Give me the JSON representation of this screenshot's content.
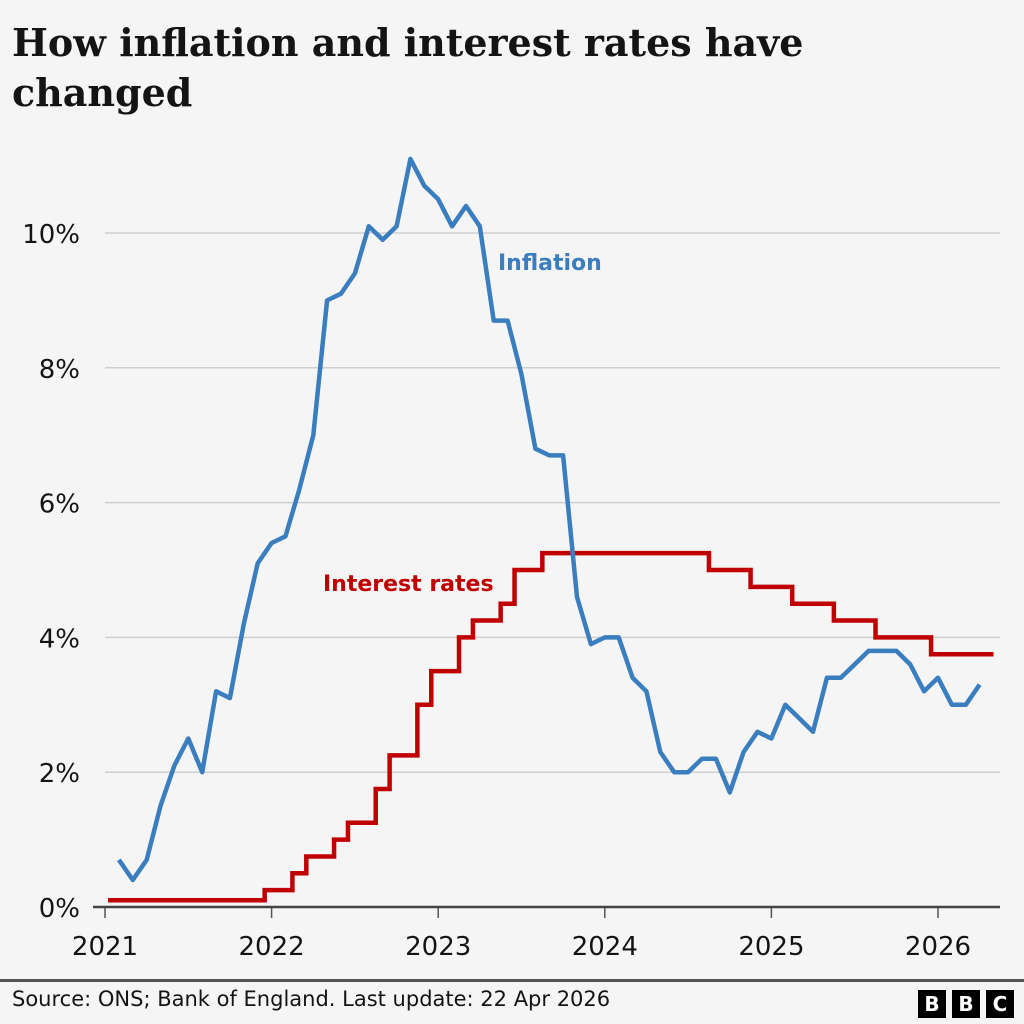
{
  "title": "How inflation and interest rates have changed",
  "footer": {
    "source": "Source: ONS; Bank of England. Last update: 22 Apr 2026",
    "logo": "BBC"
  },
  "chart_data": {
    "type": "line",
    "title": "How inflation and interest rates have changed",
    "xlabel": "",
    "ylabel": "",
    "ylim": [
      0,
      11.2
    ],
    "xlim": [
      "2021-01",
      "2026-04"
    ],
    "y_ticks": [
      "0%",
      "2%",
      "4%",
      "6%",
      "8%",
      "10%"
    ],
    "y_tick_values": [
      0,
      2,
      4,
      6,
      8,
      10
    ],
    "x_ticks": [
      "2021",
      "2022",
      "2023",
      "2024",
      "2025",
      "2026"
    ],
    "grid": "horizontal",
    "series": [
      {
        "name": "Inflation",
        "color": "#3a7ebf",
        "style": "line",
        "start": "2021-01",
        "frequency": "monthly",
        "values": [
          0.7,
          0.4,
          0.7,
          1.5,
          2.1,
          2.5,
          2.0,
          3.2,
          3.1,
          4.2,
          5.1,
          5.4,
          5.5,
          6.2,
          7.0,
          9.0,
          9.1,
          9.4,
          10.1,
          9.9,
          10.1,
          11.1,
          10.7,
          10.5,
          10.1,
          10.4,
          10.1,
          8.7,
          8.7,
          7.9,
          6.8,
          6.7,
          6.7,
          4.6,
          3.9,
          4.0,
          4.0,
          3.4,
          3.2,
          2.3,
          2.0,
          2.0,
          2.2,
          2.2,
          1.7,
          2.3,
          2.6,
          2.5,
          3.0,
          2.8,
          2.6,
          3.4,
          3.4,
          3.6,
          3.8,
          3.8,
          3.8,
          3.6,
          3.2,
          3.4,
          3.0,
          3.0,
          3.3
        ]
      },
      {
        "name": "Interest rates",
        "color": "#c00000",
        "style": "step",
        "steps": [
          {
            "date": "2021-01",
            "value": 0.1
          },
          {
            "date": "2021-12",
            "value": 0.25
          },
          {
            "date": "2022-02",
            "value": 0.5
          },
          {
            "date": "2022-03",
            "value": 0.75
          },
          {
            "date": "2022-05",
            "value": 1.0
          },
          {
            "date": "2022-06",
            "value": 1.25
          },
          {
            "date": "2022-08",
            "value": 1.75
          },
          {
            "date": "2022-09",
            "value": 2.25
          },
          {
            "date": "2022-11",
            "value": 3.0
          },
          {
            "date": "2022-12",
            "value": 3.5
          },
          {
            "date": "2023-02",
            "value": 4.0
          },
          {
            "date": "2023-03",
            "value": 4.25
          },
          {
            "date": "2023-05",
            "value": 4.5
          },
          {
            "date": "2023-06",
            "value": 5.0
          },
          {
            "date": "2023-08",
            "value": 5.25
          },
          {
            "date": "2024-08",
            "value": 5.0
          },
          {
            "date": "2024-11",
            "value": 4.75
          },
          {
            "date": "2025-02",
            "value": 4.5
          },
          {
            "date": "2025-05",
            "value": 4.25
          },
          {
            "date": "2025-08",
            "value": 4.0
          },
          {
            "date": "2025-12",
            "value": 3.75
          }
        ],
        "end": "2026-04"
      }
    ],
    "annotations": [
      {
        "text": "Inflation",
        "color": "#3a7ebf",
        "date": "2023-07",
        "value": 9.6
      },
      {
        "text": "Interest rates",
        "color": "#c00000",
        "date": "2022-04",
        "value": 4.6
      }
    ]
  }
}
